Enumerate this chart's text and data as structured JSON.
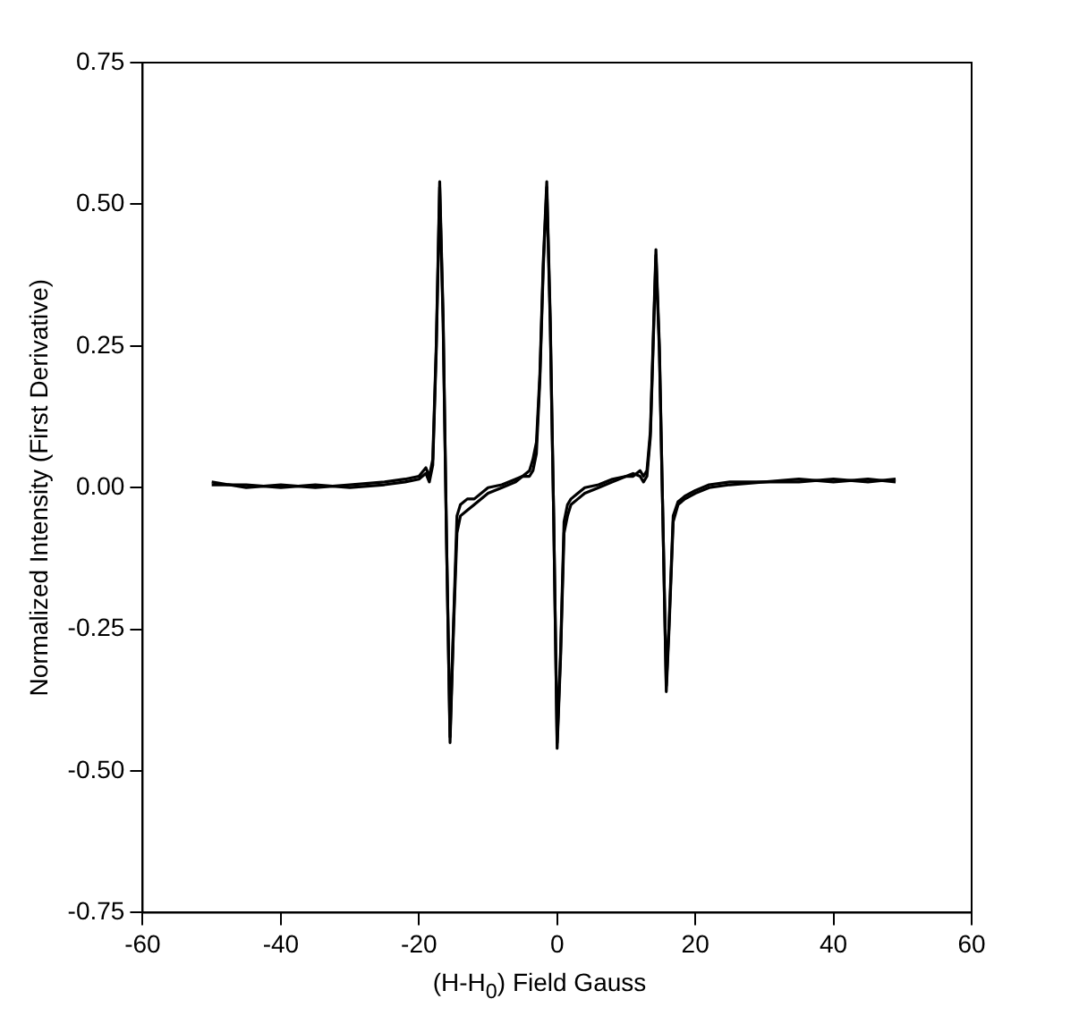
{
  "chart_data": {
    "type": "line",
    "xlabel": "(H-H$_{0}$) Field Gauss",
    "ylabel": "Normalized Intensity (First Derivative)",
    "xlim": [
      -60,
      60
    ],
    "xticks": [
      -60,
      -40,
      -20,
      0,
      20,
      40,
      60
    ],
    "ylim": [
      -0.75,
      0.75
    ],
    "yticks": [
      {
        "value": -0.75,
        "label": "-0.75"
      },
      {
        "value": -0.5,
        "label": "-0.50"
      },
      {
        "value": -0.25,
        "label": "-0.25"
      },
      {
        "value": 0,
        "label": "0.00"
      },
      {
        "value": 0.25,
        "label": "0.25"
      },
      {
        "value": 0.5,
        "label": "0.50"
      },
      {
        "value": 0.75,
        "label": "0.75"
      }
    ],
    "x": [
      -50,
      -45,
      -40,
      -35,
      -30,
      -25,
      -22,
      -20,
      -19,
      -18.5,
      -18,
      -17.5,
      -17,
      -16.5,
      -16,
      -15.5,
      -15,
      -14.5,
      -14,
      -13,
      -12,
      -10,
      -8,
      -6,
      -5,
      -4,
      -3.5,
      -3,
      -2.5,
      -2,
      -1.5,
      -1,
      -0.5,
      0,
      0.5,
      1,
      1.5,
      2,
      3,
      4,
      6,
      8,
      10,
      11,
      12,
      12.5,
      13,
      13.5,
      14,
      14.3,
      14.8,
      15.3,
      15.8,
      16.2,
      16.8,
      17.5,
      18.5,
      20,
      22,
      25,
      30,
      35,
      40,
      45,
      49
    ],
    "series": [
      {
        "color": "#000000",
        "values": [
          0.01,
          0,
          0.005,
          0,
          0.005,
          0.01,
          0.015,
          0.02,
          0.035,
          0.02,
          0.05,
          0.25,
          0.54,
          0.3,
          -0.1,
          -0.45,
          -0.25,
          -0.08,
          -0.05,
          -0.04,
          -0.03,
          -0.01,
          0,
          0.01,
          0.02,
          0.03,
          0.05,
          0.08,
          0.2,
          0.4,
          0.54,
          0.3,
          -0.05,
          -0.46,
          -0.3,
          -0.08,
          -0.05,
          -0.03,
          -0.02,
          -0.01,
          0,
          0.01,
          0.02,
          0.02,
          0.03,
          0.02,
          0.03,
          0.1,
          0.3,
          0.42,
          0.25,
          -0.05,
          -0.36,
          -0.25,
          -0.06,
          -0.03,
          -0.02,
          -0.01,
          0,
          0.005,
          0.01,
          0.01,
          0.015,
          0.01,
          0.015
        ]
      },
      {
        "color": "#000000",
        "values": [
          0.005,
          0.005,
          0,
          0.005,
          0,
          0.005,
          0.01,
          0.015,
          0.025,
          0.01,
          0.04,
          0.24,
          0.53,
          0.29,
          -0.1,
          -0.44,
          -0.24,
          -0.05,
          -0.03,
          -0.02,
          -0.02,
          0,
          0.005,
          0.015,
          0.02,
          0.02,
          0.03,
          0.06,
          0.19,
          0.39,
          0.53,
          0.29,
          -0.05,
          -0.45,
          -0.29,
          -0.06,
          -0.03,
          -0.02,
          -0.01,
          0,
          0.005,
          0.015,
          0.02,
          0.025,
          0.02,
          0.01,
          0.02,
          0.09,
          0.29,
          0.41,
          0.24,
          -0.05,
          -0.35,
          -0.24,
          -0.05,
          -0.025,
          -0.015,
          -0.005,
          0.005,
          0.01,
          0.01,
          0.015,
          0.01,
          0.015,
          0.01
        ]
      }
    ]
  }
}
